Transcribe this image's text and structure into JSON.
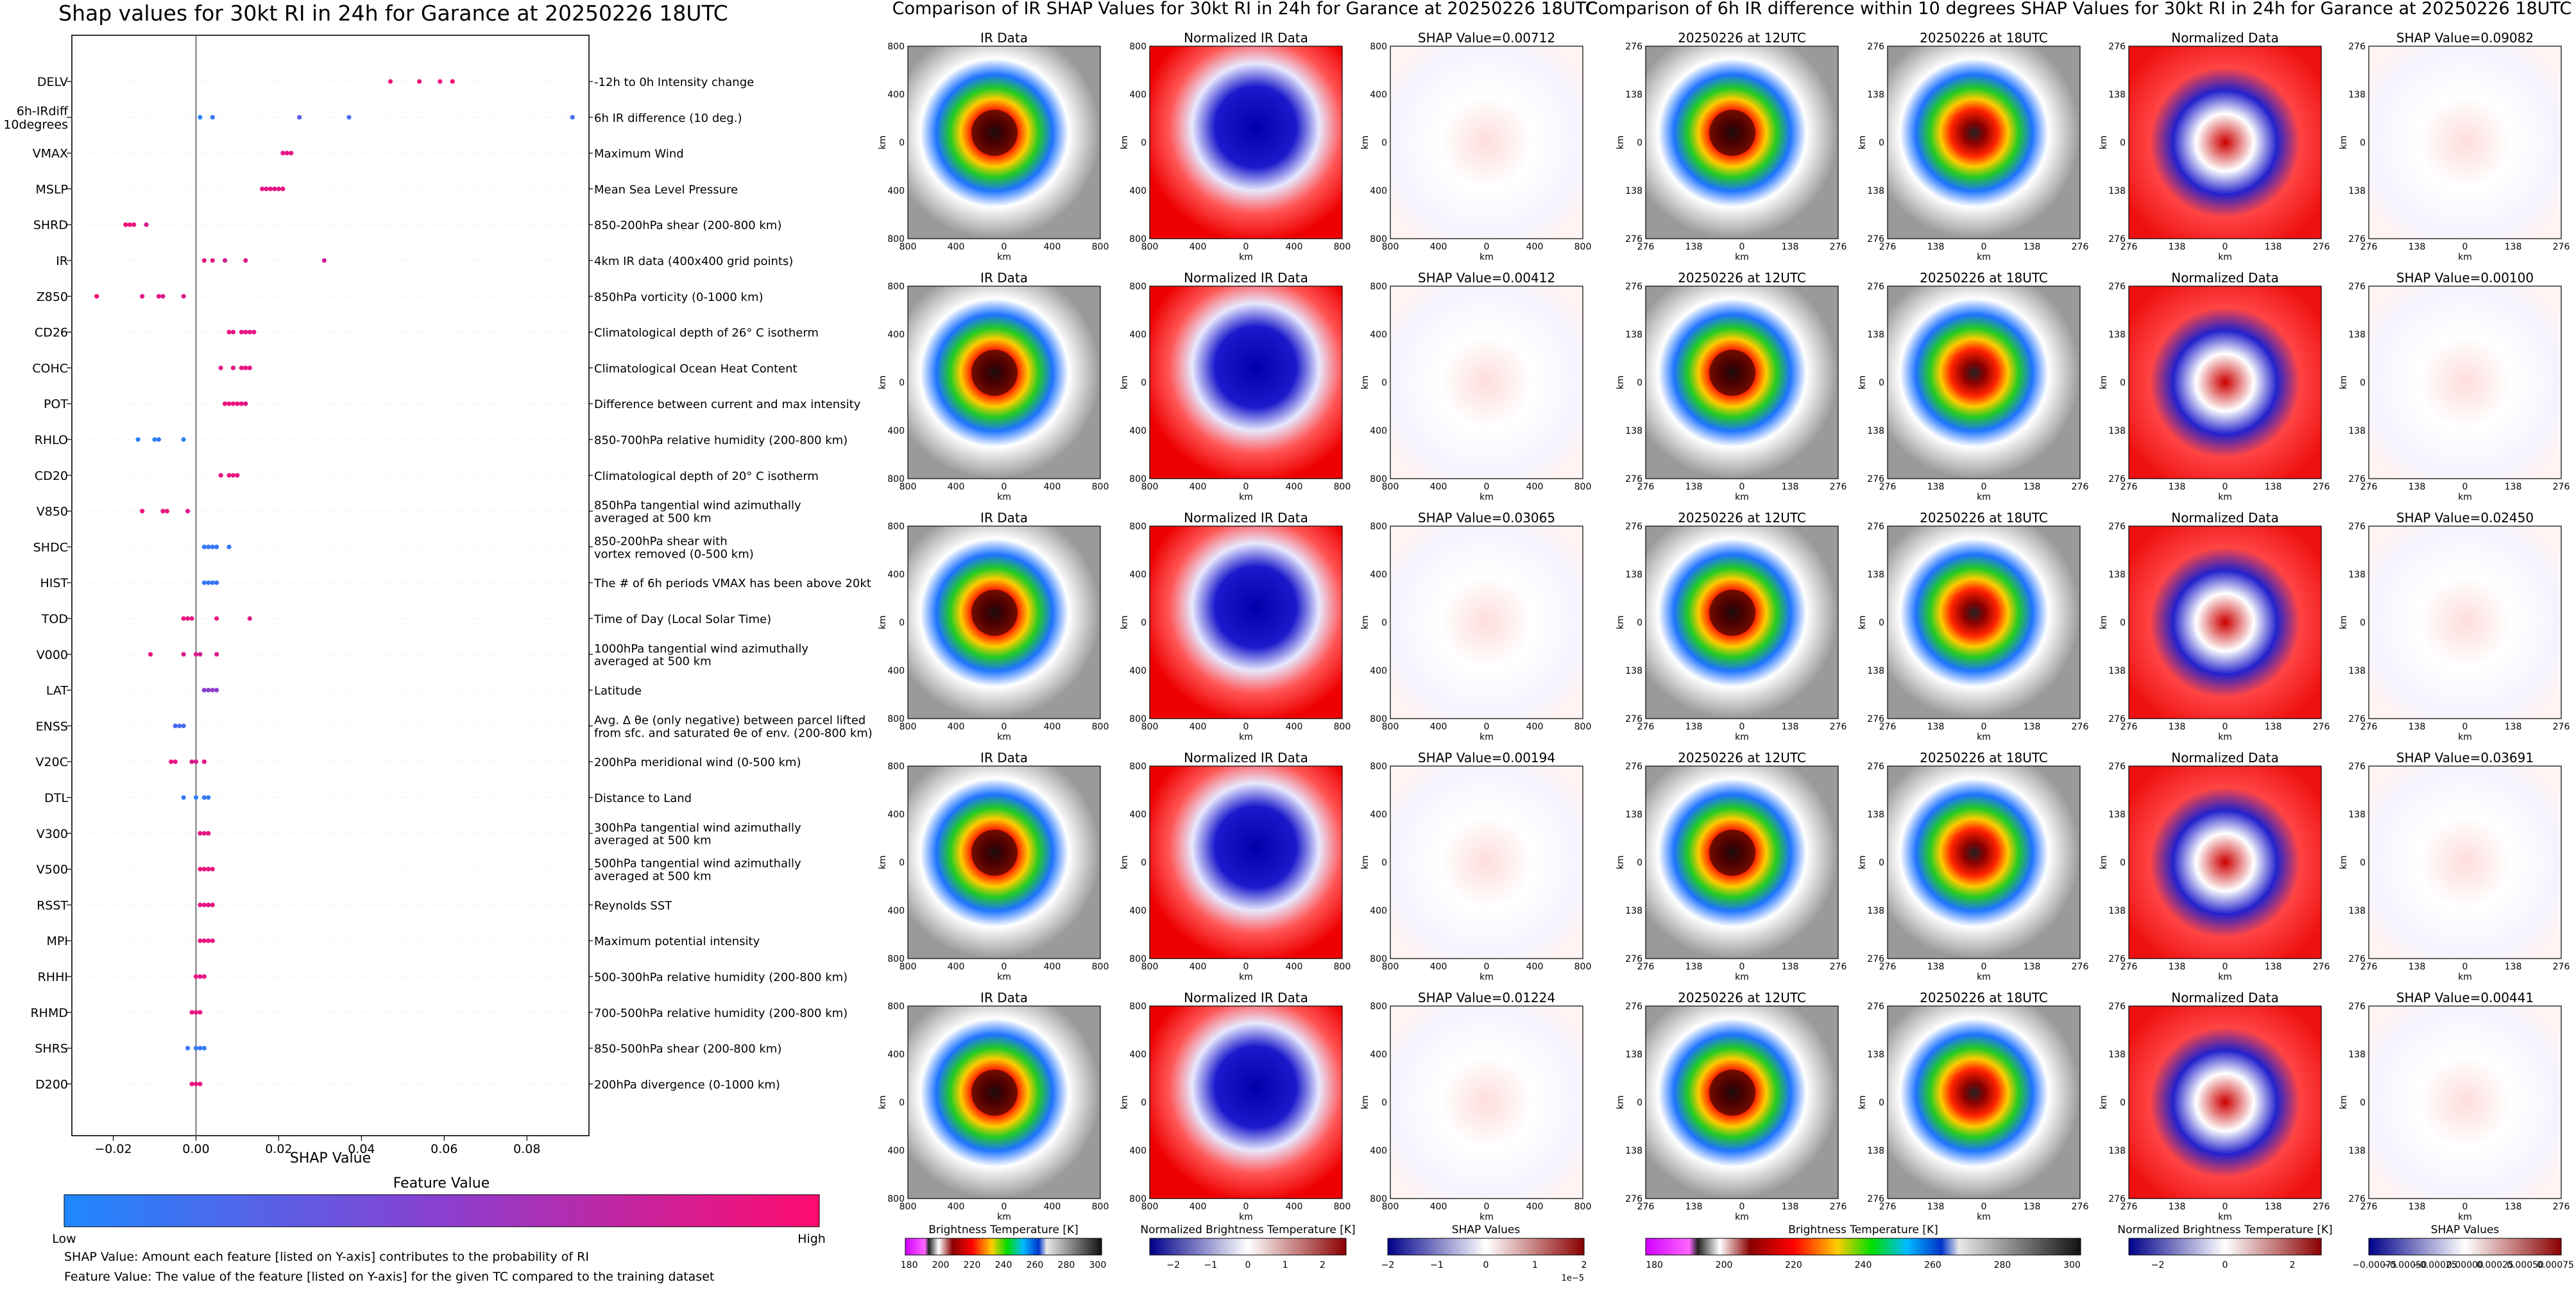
{
  "colors": {
    "low": "#1e88ff",
    "mid": "#8a3fd0",
    "high": "#ff0a6e",
    "zero_line": "#777777",
    "grid": "#eeeeee"
  },
  "summary_panel": {
    "title": "Shap values for 30kt RI in 24h for Garance at 20250226 18UTC",
    "xlabel": "SHAP Value",
    "colorbar_title": "Feature Value",
    "colorbar_low": "Low",
    "colorbar_high": "High",
    "note_1": "SHAP Value: Amount each feature [listed on Y-axis] contributes to the probability of RI",
    "note_2": "Feature Value: The value of the feature [listed on Y-axis] for the given TC compared to the training dataset"
  },
  "chart_data": [
    {
      "type": "scatter",
      "title": "Shap values for 30kt RI in 24h for Garance at 20250226 18UTC",
      "xlabel": "SHAP Value",
      "ylabel": "",
      "xlim": [
        -0.03,
        0.095
      ],
      "xticks": [
        "−0.02",
        "0.00",
        "0.02",
        "0.04",
        "0.06",
        "0.08"
      ],
      "xtick_values": [
        -0.02,
        0.0,
        0.02,
        0.04,
        0.06,
        0.08
      ],
      "legend": "colorbar-bottom",
      "features": [
        {
          "name": "DELV",
          "desc": "-12h to 0h Intensity change",
          "points": [
            [
              0.047,
              0.92
            ],
            [
              0.054,
              0.92
            ],
            [
              0.059,
              0.95
            ],
            [
              0.062,
              0.98
            ]
          ]
        },
        {
          "name": "6h-IRdiff\n10degrees",
          "desc": "6h IR difference (10 deg.)",
          "points": [
            [
              0.001,
              0.05
            ],
            [
              0.004,
              0.1
            ],
            [
              0.025,
              0.3
            ],
            [
              0.037,
              0.2
            ],
            [
              0.091,
              0.2
            ]
          ]
        },
        {
          "name": "VMAX",
          "desc": "Maximum Wind",
          "points": [
            [
              0.021,
              0.9
            ],
            [
              0.022,
              0.9
            ],
            [
              0.023,
              0.9
            ]
          ]
        },
        {
          "name": "MSLP",
          "desc": "Mean Sea Level Pressure",
          "points": [
            [
              0.016,
              0.9
            ],
            [
              0.017,
              0.9
            ],
            [
              0.018,
              0.9
            ],
            [
              0.019,
              0.85
            ],
            [
              0.02,
              0.9
            ],
            [
              0.021,
              0.9
            ]
          ]
        },
        {
          "name": "SHRD",
          "desc": "850-200hPa shear (200-800 km)",
          "points": [
            [
              -0.017,
              0.95
            ],
            [
              -0.016,
              0.95
            ],
            [
              -0.015,
              0.9
            ],
            [
              -0.012,
              0.85
            ]
          ]
        },
        {
          "name": "IR",
          "desc": "4km IR data (400x400 grid points)",
          "points": [
            [
              0.002,
              0.9
            ],
            [
              0.004,
              0.85
            ],
            [
              0.007,
              0.8
            ],
            [
              0.012,
              0.85
            ],
            [
              0.031,
              0.8
            ]
          ]
        },
        {
          "name": "Z850",
          "desc": "850hPa vorticity (0-1000 km)",
          "points": [
            [
              -0.024,
              0.95
            ],
            [
              -0.013,
              0.9
            ],
            [
              -0.009,
              0.9
            ],
            [
              -0.008,
              0.85
            ],
            [
              -0.003,
              0.85
            ]
          ]
        },
        {
          "name": "CD26",
          "desc": "Climatological depth of 26° C isotherm",
          "points": [
            [
              0.008,
              0.9
            ],
            [
              0.009,
              0.9
            ],
            [
              0.011,
              0.9
            ],
            [
              0.012,
              0.9
            ],
            [
              0.013,
              0.9
            ],
            [
              0.014,
              0.9
            ]
          ]
        },
        {
          "name": "COHC",
          "desc": "Climatological Ocean Heat Content",
          "points": [
            [
              0.006,
              0.85
            ],
            [
              0.009,
              0.9
            ],
            [
              0.011,
              0.9
            ],
            [
              0.012,
              0.9
            ],
            [
              0.013,
              0.9
            ]
          ]
        },
        {
          "name": "POT",
          "desc": "Difference between current and max intensity",
          "points": [
            [
              0.007,
              0.9
            ],
            [
              0.008,
              0.9
            ],
            [
              0.009,
              0.9
            ],
            [
              0.01,
              0.9
            ],
            [
              0.011,
              0.9
            ],
            [
              0.012,
              0.85
            ]
          ]
        },
        {
          "name": "RHLO",
          "desc": "850-700hPa relative humidity (200-800 km)",
          "points": [
            [
              -0.014,
              0.05
            ],
            [
              -0.01,
              0.05
            ],
            [
              -0.009,
              0.1
            ],
            [
              -0.003,
              0.05
            ]
          ]
        },
        {
          "name": "CD20",
          "desc": "Climatological depth of 20° C isotherm",
          "points": [
            [
              0.006,
              0.9
            ],
            [
              0.008,
              0.9
            ],
            [
              0.009,
              0.9
            ],
            [
              0.01,
              0.9
            ]
          ]
        },
        {
          "name": "V850",
          "desc": "850hPa tangential wind azimuthally\naveraged at 500 km",
          "points": [
            [
              -0.013,
              0.9
            ],
            [
              -0.008,
              0.9
            ],
            [
              -0.007,
              0.9
            ],
            [
              -0.002,
              0.85
            ]
          ]
        },
        {
          "name": "SHDC",
          "desc": "850-200hPa shear with\nvortex removed (0-500 km)",
          "points": [
            [
              0.002,
              0.1
            ],
            [
              0.003,
              0.1
            ],
            [
              0.004,
              0.1
            ],
            [
              0.005,
              0.1
            ],
            [
              0.008,
              0.1
            ]
          ]
        },
        {
          "name": "HIST",
          "desc": "The # of 6h periods VMAX has been above 20kt",
          "points": [
            [
              0.002,
              0.1
            ],
            [
              0.003,
              0.1
            ],
            [
              0.004,
              0.1
            ],
            [
              0.005,
              0.15
            ]
          ]
        },
        {
          "name": "TOD",
          "desc": "Time of Day (Local Solar Time)",
          "points": [
            [
              -0.003,
              0.9
            ],
            [
              -0.002,
              0.9
            ],
            [
              -0.001,
              0.9
            ],
            [
              0.005,
              0.9
            ],
            [
              0.013,
              0.85
            ]
          ]
        },
        {
          "name": "V000",
          "desc": "1000hPa tangential wind azimuthally\naveraged at 500 km",
          "points": [
            [
              -0.011,
              0.9
            ],
            [
              -0.003,
              0.85
            ],
            [
              0.0,
              0.85
            ],
            [
              0.001,
              0.8
            ],
            [
              0.005,
              0.85
            ]
          ]
        },
        {
          "name": "LAT",
          "desc": "Latitude",
          "points": [
            [
              0.002,
              0.5
            ],
            [
              0.003,
              0.5
            ],
            [
              0.004,
              0.55
            ],
            [
              0.005,
              0.5
            ]
          ]
        },
        {
          "name": "ENSS",
          "desc": "Avg. Δ θe (only negative) between parcel lifted\nfrom sfc. and saturated θe of env. (200-800 km)",
          "points": [
            [
              -0.005,
              0.2
            ],
            [
              -0.004,
              0.2
            ],
            [
              -0.003,
              0.2
            ]
          ]
        },
        {
          "name": "V20C",
          "desc": "200hPa meridional wind (0-500 km)",
          "points": [
            [
              -0.006,
              0.9
            ],
            [
              -0.005,
              0.9
            ],
            [
              -0.001,
              0.85
            ],
            [
              0.0,
              0.85
            ],
            [
              0.002,
              0.9
            ]
          ]
        },
        {
          "name": "DTL",
          "desc": "Distance to Land",
          "points": [
            [
              -0.003,
              0.1
            ],
            [
              0.0,
              0.05
            ],
            [
              0.002,
              0.1
            ],
            [
              0.003,
              0.1
            ]
          ]
        },
        {
          "name": "V300",
          "desc": "300hPa tangential wind azimuthally\naveraged at 500 km",
          "points": [
            [
              0.001,
              0.9
            ],
            [
              0.002,
              0.9
            ],
            [
              0.003,
              0.9
            ]
          ]
        },
        {
          "name": "V500",
          "desc": "500hPa tangential wind azimuthally\naveraged at 500 km",
          "points": [
            [
              0.001,
              0.9
            ],
            [
              0.002,
              0.9
            ],
            [
              0.003,
              0.9
            ],
            [
              0.004,
              0.9
            ]
          ]
        },
        {
          "name": "RSST",
          "desc": "Reynolds SST",
          "points": [
            [
              0.001,
              0.9
            ],
            [
              0.002,
              0.9
            ],
            [
              0.003,
              0.9
            ],
            [
              0.004,
              0.9
            ]
          ]
        },
        {
          "name": "MPI",
          "desc": "Maximum potential intensity",
          "points": [
            [
              0.001,
              0.9
            ],
            [
              0.002,
              0.9
            ],
            [
              0.003,
              0.9
            ],
            [
              0.004,
              0.9
            ]
          ]
        },
        {
          "name": "RHHI",
          "desc": "500-300hPa relative humidity (200-800 km)",
          "points": [
            [
              0.0,
              0.9
            ],
            [
              0.001,
              0.9
            ],
            [
              0.002,
              0.9
            ]
          ]
        },
        {
          "name": "RHMD",
          "desc": "700-500hPa relative humidity (200-800 km)",
          "points": [
            [
              -0.001,
              0.9
            ],
            [
              0.0,
              0.9
            ],
            [
              0.001,
              0.9
            ]
          ]
        },
        {
          "name": "SHRS",
          "desc": "850-500hPa shear (200-800 km)",
          "points": [
            [
              -0.002,
              0.1
            ],
            [
              0.0,
              0.1
            ],
            [
              0.001,
              0.1
            ],
            [
              0.002,
              0.1
            ]
          ]
        },
        {
          "name": "D200",
          "desc": "200hPa divergence (0-1000 km)",
          "points": [
            [
              -0.001,
              0.9
            ],
            [
              0.0,
              0.9
            ],
            [
              0.001,
              0.9
            ]
          ]
        }
      ]
    },
    {
      "type": "heatmap",
      "title": "Comparison of IR SHAP Values for 30kt RI in 24h for Garance at 20250226 18UTC",
      "columns": [
        "IR Data",
        "Normalized IR Data"
      ],
      "shap_titles": [
        "SHAP Value=0.00712",
        "SHAP Value=0.00412",
        "SHAP Value=0.03065",
        "SHAP Value=0.00194",
        "SHAP Value=0.01224"
      ],
      "xlabel": "km",
      "ylabel": "km",
      "ticks": [
        "800",
        "400",
        "0",
        "400",
        "800"
      ],
      "colorbars": [
        {
          "label": "Brightness Temperature [K]",
          "ticks": [
            "180",
            "200",
            "220",
            "240",
            "260",
            "280",
            "300"
          ]
        },
        {
          "label": "Normalized Brightness Temperature [K]",
          "ticks": [
            "−2",
            "−1",
            "0",
            "1",
            "2"
          ]
        },
        {
          "label": "SHAP Values",
          "ticks": [
            "−2",
            "−1",
            "0",
            "1",
            "2"
          ],
          "offset": "1e−5"
        }
      ]
    },
    {
      "type": "heatmap",
      "title": "Comparison of 6h IR difference within 10 degrees SHAP Values for 30kt RI in 24h for Garance at 20250226 18UTC",
      "columns": [
        "20250226 at 12UTC",
        "20250226 at 18UTC",
        "Normalized Data"
      ],
      "shap_titles": [
        "SHAP Value=0.09082",
        "SHAP Value=0.00100",
        "SHAP Value=0.02450",
        "SHAP Value=0.03691",
        "SHAP Value=0.00441"
      ],
      "xlabel": "km",
      "ylabel": "km",
      "ticks": [
        "276",
        "138",
        "0",
        "138",
        "276"
      ],
      "colorbars": [
        {
          "label": "Brightness Temperature [K]",
          "ticks": [
            "180",
            "200",
            "220",
            "240",
            "260",
            "280",
            "300"
          ]
        },
        {
          "label": "Normalized Brightness Temperature [K]",
          "ticks": [
            "−2",
            "0",
            "2"
          ]
        },
        {
          "label": "SHAP Values",
          "ticks": [
            "−0.00075",
            "−0.00050",
            "−0.00025",
            "0.00000",
            "0.00025",
            "0.00050",
            "0.00075"
          ]
        }
      ]
    }
  ]
}
